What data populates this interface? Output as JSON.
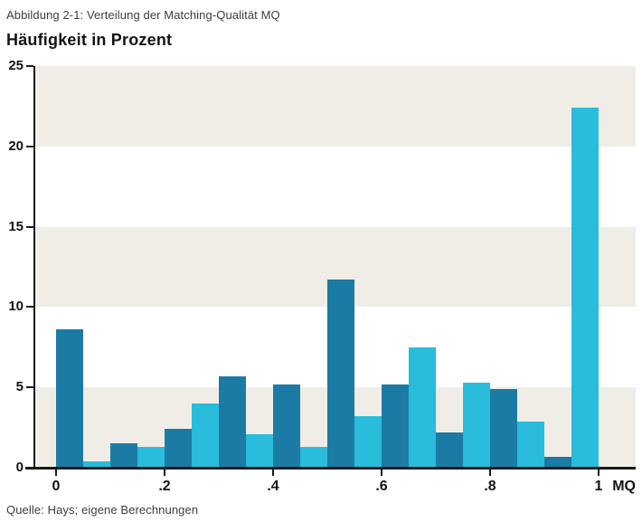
{
  "page": {
    "caption": "Abbildung 2-1: Verteilung der Matching-Qualität MQ",
    "title": "Häufigkeit in Prozent",
    "source": "Quelle: Hays; eigene Berechnungen",
    "x_axis_unit_label": "MQ"
  },
  "chart_data": {
    "type": "bar",
    "title": "Häufigkeit in Prozent",
    "caption": "Abbildung 2-1: Verteilung der Matching-Qualität MQ",
    "source": "Quelle: Hays; eigene Berechnungen",
    "xlabel": "MQ",
    "ylabel": "Häufigkeit in Prozent",
    "ylim": [
      0,
      25
    ],
    "xlim": [
      0,
      1
    ],
    "yticks": [
      0,
      5,
      10,
      15,
      20,
      25
    ],
    "xtick_values": [
      0,
      0.2,
      0.4,
      0.6,
      0.8,
      1
    ],
    "xtick_labels": [
      "0",
      ".2",
      ".4",
      ".6",
      ".8",
      "1"
    ],
    "bin_width": 0.05,
    "x_start": 0,
    "values": [
      8.6,
      0.4,
      1.5,
      1.3,
      2.4,
      4.0,
      5.7,
      2.1,
      5.2,
      1.3,
      11.7,
      3.2,
      5.2,
      7.5,
      2.2,
      5.3,
      4.9,
      2.9,
      0.7,
      22.4
    ],
    "bar_colors_alternate": [
      "#1b7ba5",
      "#2abcdb"
    ],
    "background_bands": [
      [
        0,
        5
      ],
      [
        10,
        15
      ],
      [
        20,
        25
      ]
    ],
    "band_color": "#f0ede7",
    "axis_color": "#1a1a1a",
    "grid": false,
    "legend": null
  }
}
